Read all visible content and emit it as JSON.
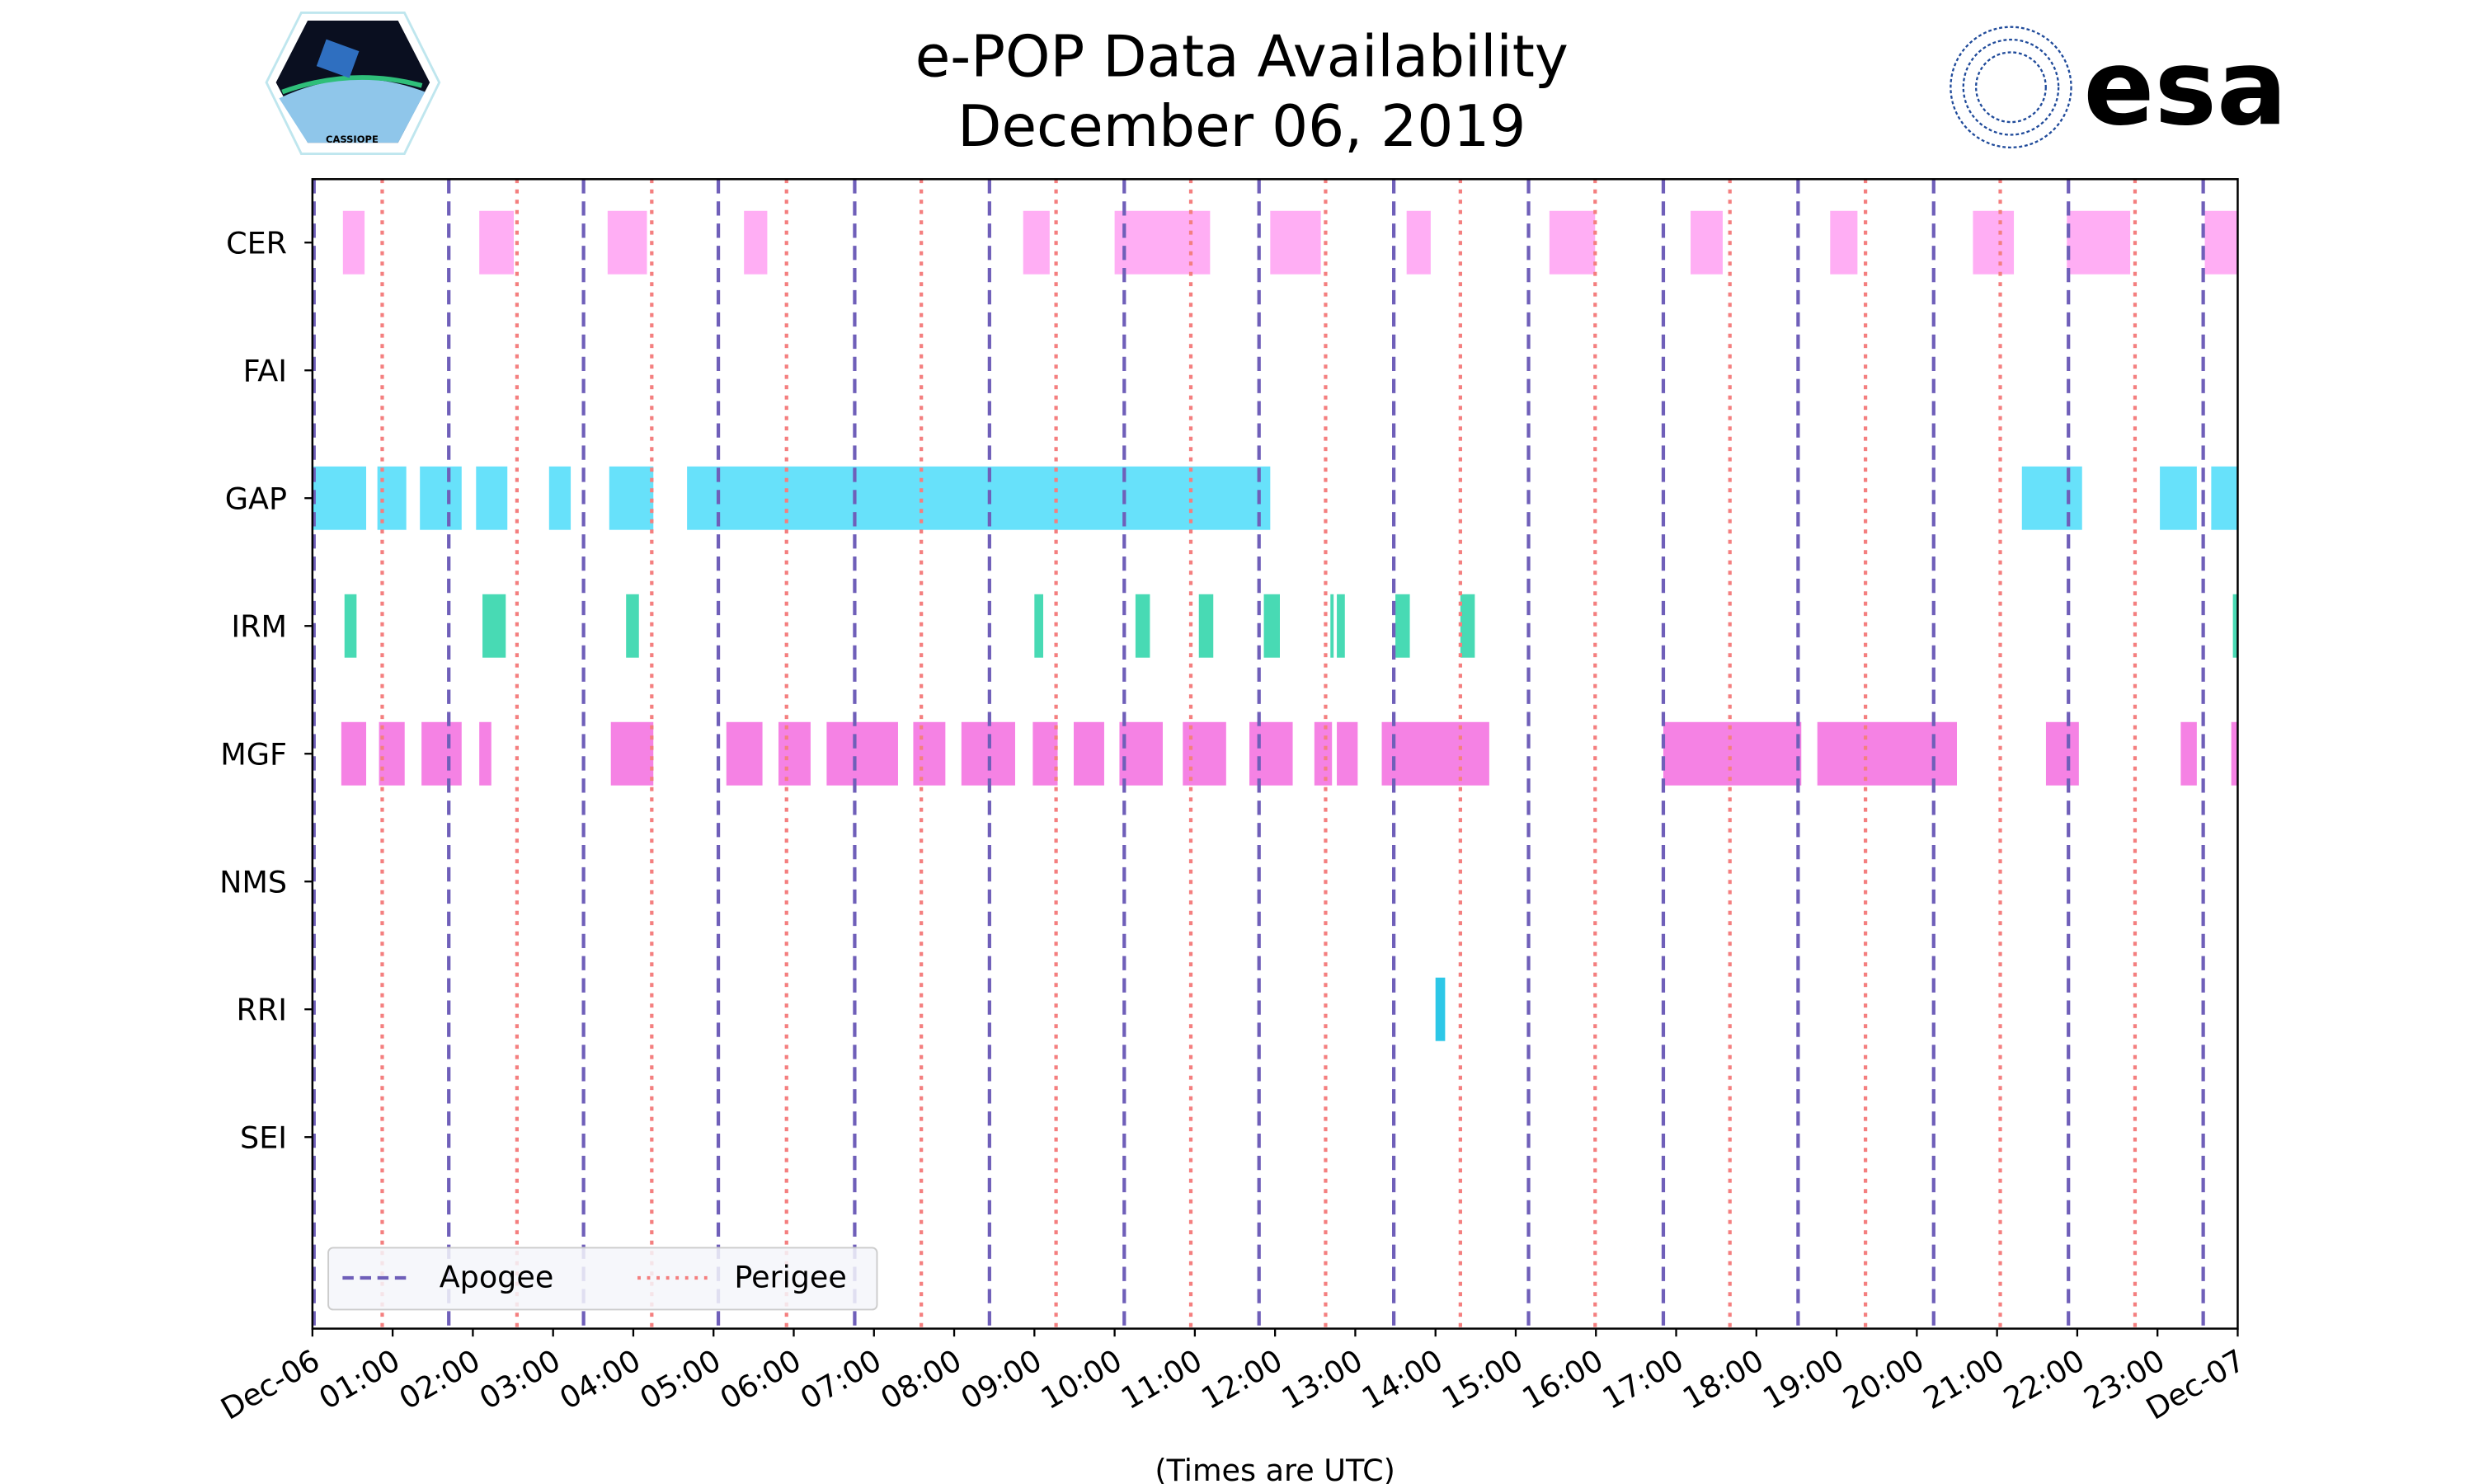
{
  "chart_data": {
    "type": "timeline",
    "title": "e-POP Data Availability",
    "subtitle": "December 06, 2019",
    "xlabel": "(Times are UTC)",
    "xlim_hours": [
      0,
      24
    ],
    "x_tick_labels": [
      "Dec-06",
      "01:00",
      "02:00",
      "03:00",
      "04:00",
      "05:00",
      "06:00",
      "07:00",
      "08:00",
      "09:00",
      "10:00",
      "11:00",
      "12:00",
      "13:00",
      "14:00",
      "15:00",
      "16:00",
      "17:00",
      "18:00",
      "19:00",
      "20:00",
      "21:00",
      "22:00",
      "23:00",
      "Dec-07"
    ],
    "instruments": [
      {
        "name": "CER",
        "color": "#ffaaf3",
        "intervals": [
          [
            0.38,
            0.65
          ],
          [
            2.08,
            2.51
          ],
          [
            3.68,
            4.17
          ],
          [
            5.38,
            5.67
          ],
          [
            8.86,
            9.19
          ],
          [
            10.0,
            11.19
          ],
          [
            11.94,
            12.57
          ],
          [
            13.64,
            13.94
          ],
          [
            15.42,
            15.99
          ],
          [
            17.18,
            17.58
          ],
          [
            18.92,
            19.26
          ],
          [
            20.7,
            21.21
          ],
          [
            21.87,
            22.66
          ],
          [
            23.59,
            24.0
          ]
        ]
      },
      {
        "name": "FAI",
        "color": "#ff9f40",
        "intervals": []
      },
      {
        "name": "GAP",
        "color": "#5fdffa",
        "intervals": [
          [
            0.0,
            0.67
          ],
          [
            0.81,
            1.17
          ],
          [
            1.34,
            1.86
          ],
          [
            2.04,
            2.43
          ],
          [
            2.95,
            3.22
          ],
          [
            3.7,
            4.25
          ],
          [
            4.67,
            11.94
          ],
          [
            21.31,
            22.06
          ],
          [
            23.03,
            23.49
          ],
          [
            23.67,
            24.0
          ]
        ]
      },
      {
        "name": "IRM",
        "color": "#3ed8b0",
        "intervals": [
          [
            0.4,
            0.55
          ],
          [
            2.12,
            2.41
          ],
          [
            3.91,
            4.07
          ],
          [
            9.0,
            9.11
          ],
          [
            10.26,
            10.44
          ],
          [
            11.05,
            11.23
          ],
          [
            11.86,
            12.06
          ],
          [
            12.69,
            12.73
          ],
          [
            12.77,
            12.87
          ],
          [
            13.5,
            13.68
          ],
          [
            14.31,
            14.49
          ],
          [
            23.94,
            24.0
          ]
        ]
      },
      {
        "name": "MGF",
        "color": "#f47be3",
        "intervals": [
          [
            0.36,
            0.67
          ],
          [
            0.83,
            1.15
          ],
          [
            1.36,
            1.86
          ],
          [
            2.08,
            2.23
          ],
          [
            3.72,
            4.25
          ],
          [
            5.16,
            5.61
          ],
          [
            5.81,
            6.21
          ],
          [
            6.41,
            7.3
          ],
          [
            7.49,
            7.89
          ],
          [
            8.09,
            8.76
          ],
          [
            8.98,
            9.29
          ],
          [
            9.49,
            9.87
          ],
          [
            10.06,
            10.6
          ],
          [
            10.85,
            11.39
          ],
          [
            11.68,
            12.22
          ],
          [
            12.49,
            12.71
          ],
          [
            12.77,
            13.03
          ],
          [
            13.33,
            14.67
          ],
          [
            16.84,
            18.56
          ],
          [
            18.76,
            20.5
          ],
          [
            21.61,
            22.02
          ],
          [
            23.29,
            23.49
          ],
          [
            23.92,
            24.0
          ]
        ]
      },
      {
        "name": "NMS",
        "color": "#8888ff",
        "intervals": []
      },
      {
        "name": "RRI",
        "color": "#22c4e6",
        "intervals": [
          [
            14.0,
            14.12
          ]
        ]
      },
      {
        "name": "SEI",
        "color": "#aaaaaa",
        "intervals": []
      }
    ],
    "apogee_hours": [
      0.02,
      1.7,
      3.38,
      5.06,
      6.76,
      8.44,
      10.12,
      11.8,
      13.48,
      15.16,
      16.84,
      18.52,
      20.21,
      21.89,
      23.57
    ],
    "perigee_hours": [
      0.87,
      2.55,
      4.23,
      5.91,
      7.59,
      9.27,
      10.95,
      12.63,
      14.31,
      15.99,
      17.67,
      19.36,
      21.04,
      22.72
    ],
    "legend": {
      "placement": "lower-left",
      "apogee_label": "Apogee",
      "perigee_label": "Perigee",
      "apogee_color": "#6f5fb9",
      "perigee_color": "#f47f7f"
    }
  },
  "logos": {
    "left_text": "CASSIOPE",
    "right_text": "esa"
  }
}
